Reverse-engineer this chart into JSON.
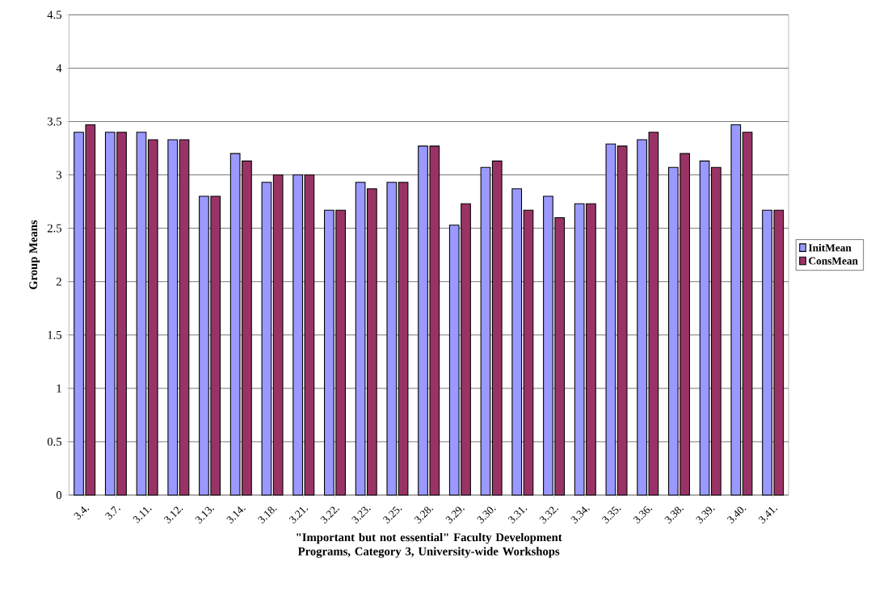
{
  "chart_data": {
    "type": "bar",
    "xlabel": "\"Important but not essential\" Faculty Development Programs, Category 3, University-wide Workshops",
    "ylabel": "Group Means",
    "categories": [
      "3.4.",
      "3.7.",
      "3.11.",
      "3.12.",
      "3.13.",
      "3.14.",
      "3.18.",
      "3.21.",
      "3.22.",
      "3.23.",
      "3.25.",
      "3.28.",
      "3.29.",
      "3.30.",
      "3.31.",
      "3.32.",
      "3.34.",
      "3.35.",
      "3.36.",
      "3.38.",
      "3.39.",
      "3.40.",
      "3.41."
    ],
    "series": [
      {
        "name": "InitMean",
        "color": "#9999ff",
        "values": [
          3.4,
          3.4,
          3.4,
          3.33,
          2.8,
          3.2,
          2.93,
          3.0,
          2.67,
          2.93,
          2.93,
          3.27,
          2.53,
          3.07,
          2.87,
          2.8,
          2.73,
          3.29,
          3.33,
          3.07,
          3.13,
          3.47,
          2.67
        ]
      },
      {
        "name": "ConsMean",
        "color": "#993366",
        "values": [
          3.47,
          3.4,
          3.33,
          3.33,
          2.8,
          3.13,
          3.0,
          3.0,
          2.67,
          2.87,
          2.93,
          3.27,
          2.73,
          3.13,
          2.67,
          2.6,
          2.73,
          3.27,
          3.4,
          3.2,
          3.07,
          3.4,
          2.67
        ]
      }
    ],
    "ylim": [
      0,
      4.5
    ],
    "yticks": [
      0,
      0.5,
      1,
      1.5,
      2,
      2.5,
      3,
      3.5,
      4,
      4.5
    ],
    "grid": "y",
    "legend": "right"
  }
}
